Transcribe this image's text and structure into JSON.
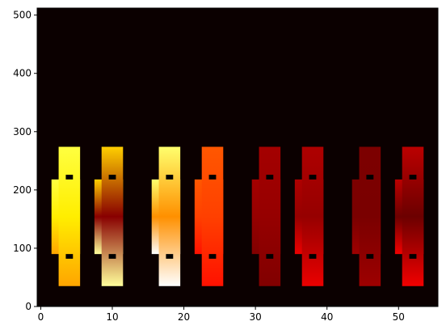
{
  "chart_data": {
    "type": "heatmap",
    "title": "",
    "xlabel": "",
    "ylabel": "",
    "xlim": [
      -0.5,
      55.5
    ],
    "ylim": [
      0,
      512
    ],
    "grid": false,
    "legend": "none",
    "x_ticks": [
      0,
      10,
      20,
      30,
      40,
      50
    ],
    "y_ticks": [
      0,
      100,
      200,
      300,
      400,
      500
    ],
    "background_color": "#0b0000",
    "colormap": "hot",
    "columns": [
      {
        "x0": 1.5,
        "x1": 5.5,
        "intensity": 0.9,
        "bright_end": "middle",
        "mid_level": 0.72,
        "end_level": 0.82
      },
      {
        "x0": 7.5,
        "x1": 11.5,
        "intensity": 0.75,
        "bright_end": "bottom",
        "mid_level": 0.18,
        "end_level": 0.9
      },
      {
        "x0": 15.5,
        "x1": 19.5,
        "intensity": 0.95,
        "bright_end": "bottom",
        "mid_level": 0.58,
        "end_level": 1.0
      },
      {
        "x0": 21.5,
        "x1": 25.5,
        "intensity": 0.55,
        "bright_end": "middle",
        "mid_level": 0.46,
        "end_level": 0.38
      },
      {
        "x0": 29.5,
        "x1": 33.5,
        "intensity": 0.22,
        "bright_end": "top",
        "mid_level": 0.2,
        "end_level": 0.22
      },
      {
        "x0": 35.5,
        "x1": 39.5,
        "intensity": 0.26,
        "bright_end": "bottom",
        "mid_level": 0.2,
        "end_level": 0.32
      },
      {
        "x0": 43.5,
        "x1": 47.5,
        "intensity": 0.18,
        "bright_end": "bottom",
        "mid_level": 0.16,
        "end_level": 0.21
      },
      {
        "x0": 49.5,
        "x1": 53.5,
        "intensity": 0.28,
        "bright_end": "bottom",
        "mid_level": 0.14,
        "end_level": 0.33
      }
    ],
    "column_extent": {
      "y0": 35,
      "y1": 274,
      "inner_y0": 90,
      "inner_y1": 218,
      "outer_inset": 1
    },
    "markers_y": [
      86,
      222
    ]
  }
}
